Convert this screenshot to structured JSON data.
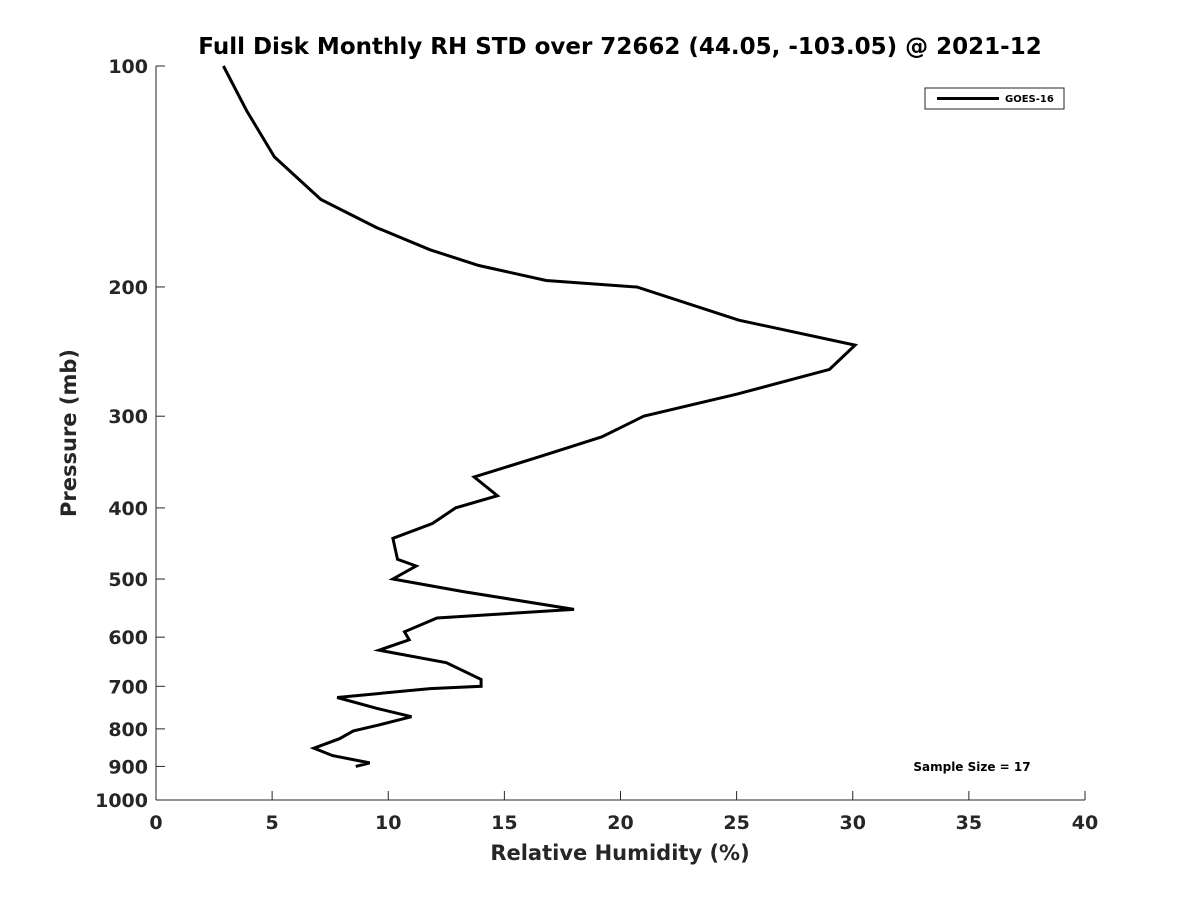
{
  "chart_data": {
    "type": "line",
    "title": "Full Disk Monthly RH STD over 72662 (44.05, -103.05) @ 2021-12",
    "xlabel": "Relative Humidity (%)",
    "ylabel": "Pressure (mb)",
    "xlim": [
      0,
      40
    ],
    "ylim": [
      100,
      1000
    ],
    "y_scale": "log",
    "y_reversed": true,
    "x_ticks": [
      0,
      5,
      10,
      15,
      20,
      25,
      30,
      35,
      40
    ],
    "y_ticks": [
      100,
      200,
      300,
      400,
      500,
      600,
      700,
      800,
      900,
      1000
    ],
    "grid": false,
    "legend_position": "top-right",
    "line_color": "#000000",
    "annotation": "Sample Size = 17",
    "series": [
      {
        "name": "GOES-16",
        "x": [
          2.9,
          3.9,
          5.1,
          7.1,
          9.5,
          11.8,
          13.9,
          16.8,
          20.7,
          25.1,
          30.1,
          29.0,
          25.0,
          21.0,
          19.2,
          16.6,
          13.7,
          14.7,
          12.9,
          11.9,
          10.2,
          10.4,
          11.2,
          10.2,
          13.2,
          18.0,
          12.1,
          10.7,
          10.9,
          9.6,
          12.5,
          14.0,
          14.0,
          11.8,
          7.8,
          9.5,
          11.0,
          9.6,
          8.5,
          7.9,
          6.8,
          7.6,
          9.2,
          8.6
        ],
        "y": [
          100,
          115,
          133,
          152,
          166,
          178,
          187,
          196,
          200,
          222,
          240,
          259,
          280,
          300,
          320,
          340,
          363,
          385,
          400,
          420,
          440,
          470,
          480,
          500,
          520,
          550,
          565,
          590,
          605,
          625,
          650,
          685,
          700,
          705,
          725,
          750,
          770,
          790,
          805,
          825,
          850,
          870,
          890,
          900
        ]
      }
    ]
  }
}
